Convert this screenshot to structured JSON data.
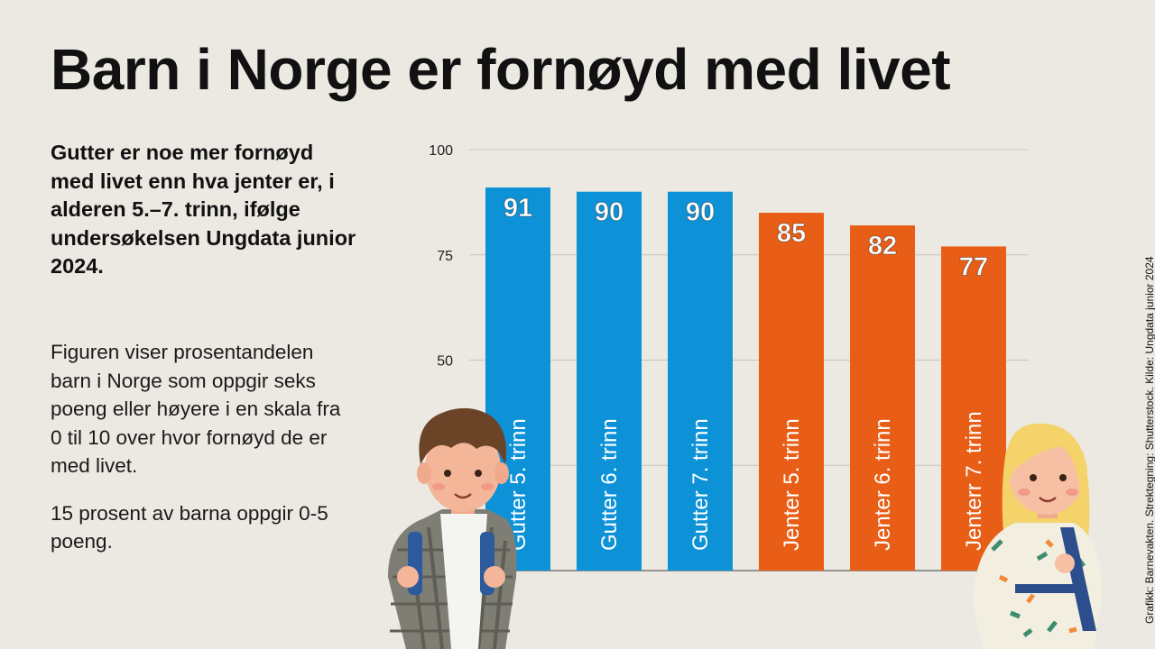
{
  "title": "Barn i Norge er fornøyd med livet",
  "lead": "Gutter er noe mer fornøyd med livet enn hva jenter er, i alderen 5.–7. trinn, ifølge undersøkelsen Ungdata junior 2024.",
  "body_paragraphs": [
    "Figuren viser prosentandelen barn i Norge som oppgir seks poeng eller høyere i en skala fra 0 til 10 over hvor fornøyd de er med livet.",
    "15 prosent av barna oppgir 0-5 poeng."
  ],
  "credit": "Grafikk: Barnevakten. Strektegning: Shutterstock. Kilde: Ungdata junior 2024",
  "colors": {
    "background": "#ece8e2",
    "boys": "#0d92d8",
    "girls": "#e85e17"
  },
  "illustrations": [
    "boy-illustration",
    "girl-illustration"
  ],
  "chart_data": {
    "type": "bar",
    "categories": [
      "Gutter 5. trinn",
      "Gutter 6. trinn",
      "Gutter 7. trinn",
      "Jenter 5. trinn",
      "Jenter 6. trinn",
      "Jenterr 7. trinn"
    ],
    "values": [
      91,
      90,
      90,
      85,
      82,
      77
    ],
    "groups": [
      "boys",
      "boys",
      "boys",
      "girls",
      "girls",
      "girls"
    ],
    "ylim": [
      0,
      100
    ],
    "yticks": [
      100,
      75,
      50,
      25
    ],
    "ytick_labels": [
      "100",
      "75",
      "50",
      ""
    ],
    "grid": true,
    "title": "",
    "xlabel": "",
    "ylabel": ""
  }
}
